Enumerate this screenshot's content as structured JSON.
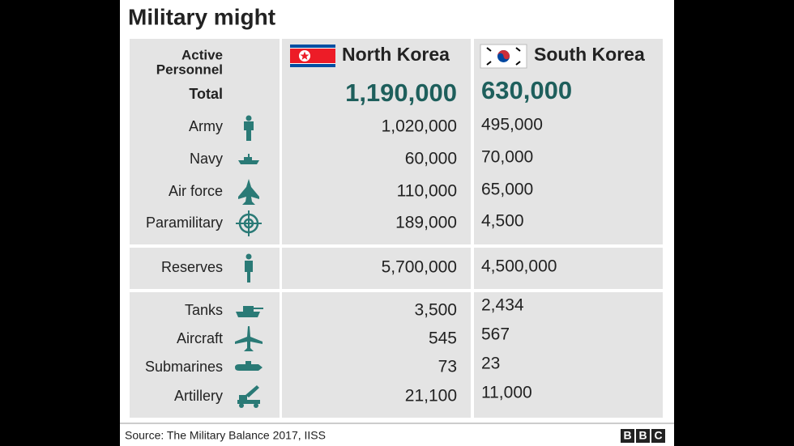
{
  "header": {
    "title": "Military might"
  },
  "table": {
    "label_lines": [
      "Active",
      "Personnel"
    ],
    "columns": [
      "North Korea",
      "South Korea"
    ],
    "total": {
      "label": "Total",
      "north_korea": "1,190,000",
      "south_korea": "630,000"
    },
    "sections": [
      {
        "rows": [
          {
            "label": "Army",
            "north_korea": "1,020,000",
            "south_korea": "495,000"
          },
          {
            "label": "Navy",
            "north_korea": "60,000",
            "south_korea": "70,000"
          },
          {
            "label": "Air force",
            "north_korea": "110,000",
            "south_korea": "65,000"
          },
          {
            "label": "Paramilitary",
            "north_korea": "189,000",
            "south_korea": "4,500"
          }
        ]
      },
      {
        "rows": [
          {
            "label": "Reserves",
            "north_korea": "5,700,000",
            "south_korea": "4,500,000"
          }
        ]
      },
      {
        "rows": [
          {
            "label": "Tanks",
            "north_korea": "3,500",
            "south_korea": "2,434"
          },
          {
            "label": "Aircraft",
            "north_korea": "545",
            "south_korea": "567"
          },
          {
            "label": "Submarines",
            "north_korea": "73",
            "south_korea": "23"
          },
          {
            "label": "Artillery",
            "north_korea": "21,100",
            "south_korea": "11,000"
          }
        ]
      }
    ]
  },
  "footer": {
    "source": "Source: The Military Balance 2017, IISS",
    "logo": [
      "B",
      "B",
      "C"
    ]
  }
}
